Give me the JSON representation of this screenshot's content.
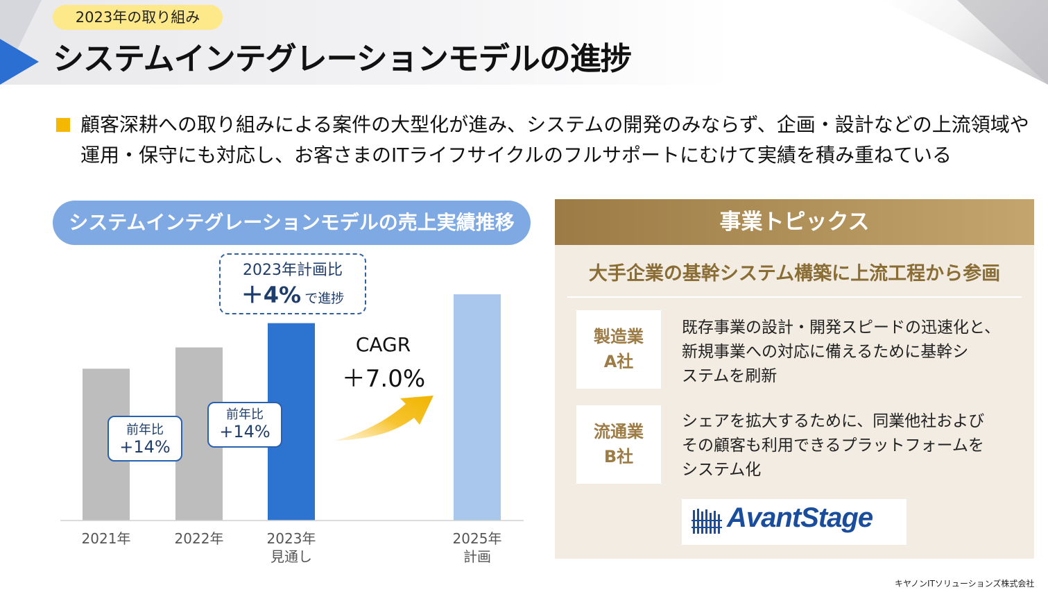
{
  "header": {
    "badge": "2023年の取り組み",
    "title": "システムインテグレーションモデルの進捗"
  },
  "bullet": {
    "text": "顧客深耕への取り組みによる案件の大型化が進み、システムの開発のみならず、企画・設計などの上流領域や運用・保守にも対応し、お客さまのITライフサイクルのフルサポートにむけて実績を積み重ねている"
  },
  "chart_section": {
    "title": "システムインテグレーションモデルの売上実績推移"
  },
  "chart_data": {
    "type": "bar",
    "title": "システムインテグレーションモデルの売上実績推移",
    "categories": [
      "2021年",
      "2022年",
      "2023年\n見通し",
      "2025年\n計画"
    ],
    "category_lines": [
      [
        "2021年"
      ],
      [
        "2022年"
      ],
      [
        "2023年",
        "見通し"
      ],
      [
        "2025年",
        "計画"
      ]
    ],
    "values": [
      100,
      114,
      130,
      149
    ],
    "ylim": [
      0,
      160
    ],
    "bar_colors": [
      "#bdbdbd",
      "#bdbdbd",
      "#2d74d0",
      "#a9c6ec"
    ],
    "annotations": {
      "yoy_2022": {
        "label": "前年比",
        "value": "+14%"
      },
      "yoy_2023": {
        "label": "前年比",
        "value": "+14%"
      },
      "plan_vs": {
        "line1": "2023年計画比",
        "big": "＋4%",
        "small": "で進捗"
      },
      "cagr": {
        "label": "CAGR",
        "value": "＋7.0%"
      }
    }
  },
  "topics": {
    "header": "事業トピックス",
    "subtitle": "大手企業の基幹システム構築に上流工程から参画",
    "cases": [
      {
        "industry": "製造業",
        "company": "A社",
        "lines": [
          "既存事業の設計・開発スピードの迅速化と、",
          "新規事業への対応に備えるために基幹シ",
          "ステムを刷新"
        ]
      },
      {
        "industry": "流通業",
        "company": "B社",
        "lines": [
          "シェアを拡大するために、同業他社および",
          "その顧客も利用できるプラットフォームを",
          "システム化"
        ]
      }
    ],
    "logo_text": "AvantStage"
  },
  "footer": {
    "company": "キヤノンITソリューションズ株式会社"
  },
  "colors": {
    "accent_blue": "#2a6fd1",
    "gold": "#9c7b45",
    "arrow_yellow": "#f5b800"
  }
}
